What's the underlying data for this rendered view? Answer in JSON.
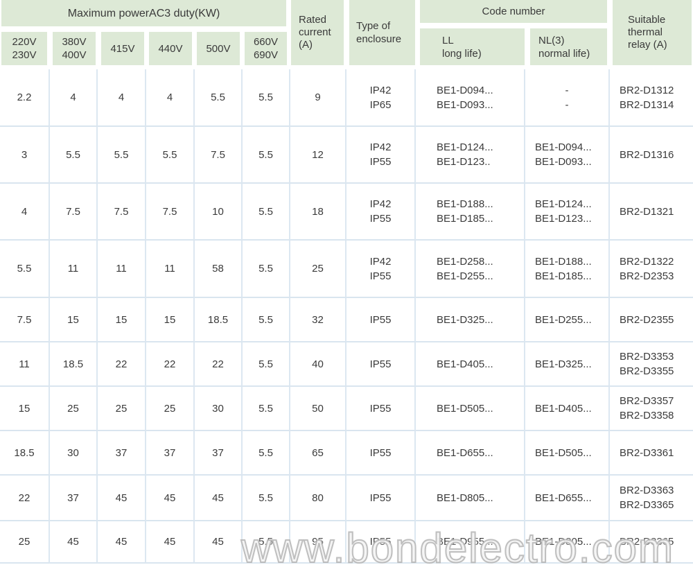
{
  "colors": {
    "header_bg": "#dde9d6",
    "grid_line": "#d9e5ef",
    "text": "#3a3a3a",
    "watermark_gray": "#acacac"
  },
  "table": {
    "header": {
      "max_power_title": "Maximum powerAC3 duty(KW)",
      "voltage_cols": [
        "220V\n230V",
        "380V\n400V",
        "415V",
        "440V",
        "500V",
        "660V\n690V"
      ],
      "rated_current": "Rated\ncurrent\n(A)",
      "type_of_enclosure": "Type of\nenclosure",
      "code_number": "Code number",
      "code_ll": "LL\nlong life)",
      "code_nl": "NL(3)\nnormal life)",
      "thermal_relay": "Suitable\nthermal\nrelay (A)"
    },
    "rows": [
      [
        "2.2",
        "4",
        "4",
        "4",
        "5.5",
        "5.5",
        "9",
        "IP42\nIP65",
        "BE1-D094...\nBE1-D093...",
        "-\n-",
        "BR2-D1312\nBR2-D1314"
      ],
      [
        "3",
        "5.5",
        "5.5",
        "5.5",
        "7.5",
        "5.5",
        "12",
        "IP42\nIP55",
        "BE1-D124...\nBE1-D123..",
        "BE1-D094...\nBE1-D093...",
        "BR2-D1316"
      ],
      [
        "4",
        "7.5",
        "7.5",
        "7.5",
        "10",
        "5.5",
        "18",
        "IP42\nIP55",
        "BE1-D188...\nBE1-D185...",
        "BE1-D124...\nBE1-D123...",
        "BR2-D1321"
      ],
      [
        "5.5",
        "11",
        "11",
        "11",
        "58",
        "5.5",
        "25",
        "IP42\nIP55",
        "BE1-D258...\nBE1-D255...",
        "BE1-D188...\nBE1-D185...",
        "BR2-D1322\nBR2-D2353"
      ],
      [
        "7.5",
        "15",
        "15",
        "15",
        "18.5",
        "5.5",
        "32",
        "IP55",
        "BE1-D325...",
        "BE1-D255...",
        "BR2-D2355"
      ],
      [
        "11",
        "18.5",
        "22",
        "22",
        "22",
        "5.5",
        "40",
        "IP55",
        "BE1-D405...",
        "BE1-D325...",
        "BR2-D3353\nBR2-D3355"
      ],
      [
        "15",
        "25",
        "25",
        "25",
        "30",
        "5.5",
        "50",
        "IP55",
        "BE1-D505...",
        "BE1-D405...",
        "BR2-D3357\nBR2-D3358"
      ],
      [
        "18.5",
        "30",
        "37",
        "37",
        "37",
        "5.5",
        "65",
        "IP55",
        "BE1-D655...",
        "BE1-D505...",
        "BR2-D3361"
      ],
      [
        "22",
        "37",
        "45",
        "45",
        "45",
        "5.5",
        "80",
        "IP55",
        "BE1-D805...",
        "BE1-D655...",
        "BR2-D3363\nBR2-D3365"
      ],
      [
        "25",
        "45",
        "45",
        "45",
        "45",
        "5.5",
        "95",
        "IP55",
        "BE1-D955...",
        "BE1-D805...",
        "BR2-D3365"
      ]
    ]
  },
  "watermark": {
    "text": "www.bondelectro.com"
  }
}
